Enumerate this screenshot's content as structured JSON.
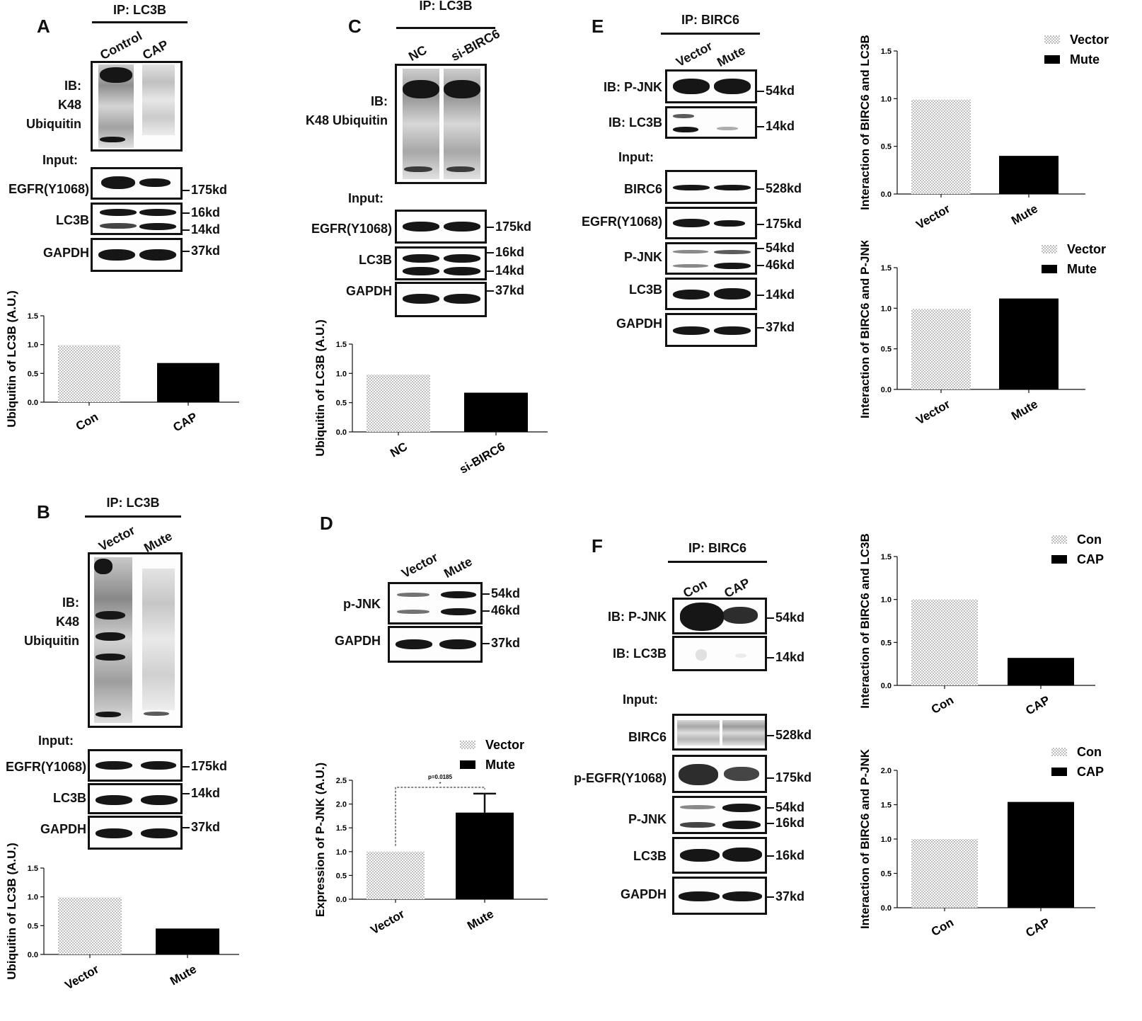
{
  "panels": {
    "A": {
      "letter": "A",
      "ip": "IP: LC3B",
      "lanes": [
        "Control",
        "CAP"
      ],
      "ib": "IB:\nK48\nUbiquitin",
      "input": "Input:",
      "rows": [
        {
          "label": "EGFR(Y1068)",
          "kd": [
            "175kd"
          ]
        },
        {
          "label": "LC3B",
          "kd": [
            "16kd",
            "14kd"
          ]
        },
        {
          "label": "GAPDH",
          "kd": [
            "37kd"
          ]
        }
      ]
    },
    "B": {
      "letter": "B",
      "ip": "IP: LC3B",
      "lanes": [
        "Vector",
        "Mute"
      ],
      "ib": "IB:\nK48\nUbiquitin",
      "input": "Input:",
      "rows": [
        {
          "label": "EGFR(Y1068)",
          "kd": [
            "175kd"
          ]
        },
        {
          "label": "LC3B",
          "kd": [
            "14kd"
          ]
        },
        {
          "label": "GAPDH",
          "kd": [
            "37kd"
          ]
        }
      ]
    },
    "C": {
      "letter": "C",
      "ip": "IP: LC3B",
      "lanes": [
        "NC",
        "si-BIRC6"
      ],
      "ib": "IB:\nK48 Ubiquitin",
      "input": "Input:",
      "rows": [
        {
          "label": "EGFR(Y1068)",
          "kd": [
            "175kd"
          ]
        },
        {
          "label": "LC3B",
          "kd": [
            "16kd",
            "14kd"
          ]
        },
        {
          "label": "GAPDH",
          "kd": [
            "37kd"
          ]
        }
      ]
    },
    "D": {
      "letter": "D",
      "lanes": [
        "Vector",
        "Mute"
      ],
      "rows": [
        {
          "label": "p-JNK",
          "kd": [
            "54kd",
            "46kd"
          ]
        },
        {
          "label": "GAPDH",
          "kd": [
            "37kd"
          ]
        }
      ]
    },
    "E": {
      "letter": "E",
      "ip": "IP: BIRC6",
      "lanes": [
        "Vector",
        "Mute"
      ],
      "ib_rows": [
        {
          "label": "IB: P-JNK",
          "kd": [
            "54kd"
          ]
        },
        {
          "label": "IB: LC3B",
          "kd": [
            "14kd"
          ]
        }
      ],
      "input": "Input:",
      "rows": [
        {
          "label": "BIRC6",
          "kd": [
            "528kd"
          ]
        },
        {
          "label": "EGFR(Y1068)",
          "kd": [
            "175kd"
          ]
        },
        {
          "label": "P-JNK",
          "kd": [
            "54kd",
            "46kd"
          ]
        },
        {
          "label": "LC3B",
          "kd": [
            "14kd"
          ]
        },
        {
          "label": "GAPDH",
          "kd": [
            "37kd"
          ]
        }
      ]
    },
    "F": {
      "letter": "F",
      "ip": "IP: BIRC6",
      "lanes": [
        "Con",
        "CAP"
      ],
      "ib_rows": [
        {
          "label": "IB: P-JNK",
          "kd": [
            "54kd"
          ]
        },
        {
          "label": "IB: LC3B",
          "kd": [
            "14kd"
          ]
        }
      ],
      "input": "Input:",
      "rows": [
        {
          "label": "BIRC6",
          "kd": [
            "528kd"
          ]
        },
        {
          "label": "p-EGFR(Y1068)",
          "kd": [
            "175kd"
          ]
        },
        {
          "label": "P-JNK",
          "kd": [
            "54kd",
            "16kd"
          ]
        },
        {
          "label": "LC3B",
          "kd": [
            "16kd"
          ]
        },
        {
          "label": "GAPDH",
          "kd": [
            "37kd"
          ]
        }
      ]
    }
  },
  "colors": {
    "bar_dark": "#000000",
    "bar_light": "#d9d9d9"
  },
  "chart_data": [
    {
      "id": "A",
      "type": "bar",
      "categories": [
        "Con",
        "CAP"
      ],
      "values": [
        0.99,
        0.68
      ],
      "ylabel": "Ubiquitin of LC3B (A.U.)",
      "ylim": [
        0,
        1.5
      ],
      "ticks": [
        "0.0",
        "0.5",
        "1.0",
        "1.5"
      ],
      "legend": []
    },
    {
      "id": "B",
      "type": "bar",
      "categories": [
        "Vector",
        "Mute"
      ],
      "values": [
        0.99,
        0.45
      ],
      "ylabel": "Ubiquitin of LC3B (A.U.)",
      "ylim": [
        0,
        1.5
      ],
      "ticks": [
        "0.0",
        "0.5",
        "1.0",
        "1.5"
      ],
      "legend": []
    },
    {
      "id": "C",
      "type": "bar",
      "categories": [
        "NC",
        "si-BIRC6"
      ],
      "values": [
        0.98,
        0.67
      ],
      "ylabel": "Ubiquitin of LC3B (A.U.)",
      "ylim": [
        0,
        1.5
      ],
      "ticks": [
        "0.0",
        "0.5",
        "1.0",
        "1.5"
      ],
      "legend": []
    },
    {
      "id": "D",
      "type": "bar",
      "categories": [
        "Vector",
        "Mute"
      ],
      "values": [
        1.0,
        1.82
      ],
      "errors": [
        0,
        0.4
      ],
      "ylabel": "Expression of P-JNK (A.U.)",
      "ylim": [
        0,
        2.5
      ],
      "ticks": [
        "0.0",
        "0.5",
        "1.0",
        "1.5",
        "2.0",
        "2.5"
      ],
      "legend": [
        "Vector",
        "Mute"
      ],
      "annotation": "p=0.0185",
      "star": "*"
    },
    {
      "id": "E1",
      "type": "bar",
      "categories": [
        "Vector",
        "Mute"
      ],
      "values": [
        0.99,
        0.4
      ],
      "ylabel": "Interaction of BIRC6 and LC3B",
      "ylim": [
        0,
        1.5
      ],
      "ticks": [
        "0.0",
        "0.5",
        "1.0",
        "1.5"
      ],
      "legend": [
        "Vector",
        "Mute"
      ]
    },
    {
      "id": "E2",
      "type": "bar",
      "categories": [
        "Vector",
        "Mute"
      ],
      "values": [
        0.99,
        1.12
      ],
      "ylabel": "Interaction of BIRC6 and P-JNK",
      "ylim": [
        0,
        1.5
      ],
      "ticks": [
        "0.0",
        "0.5",
        "1.0",
        "1.5"
      ],
      "legend": [
        "Vector",
        "Mute"
      ]
    },
    {
      "id": "F1",
      "type": "bar",
      "categories": [
        "Con",
        "CAP"
      ],
      "values": [
        1.0,
        0.32
      ],
      "ylabel": "Interaction of BIRC6 and LC3B",
      "ylim": [
        0,
        1.5
      ],
      "ticks": [
        "0.0",
        "0.5",
        "1.0",
        "1.5"
      ],
      "legend": [
        "Con",
        "CAP"
      ]
    },
    {
      "id": "F2",
      "type": "bar",
      "categories": [
        "Con",
        "CAP"
      ],
      "values": [
        1.0,
        1.54
      ],
      "ylabel": "Interaction of BIRC6 and P-JNK",
      "ylim": [
        0,
        2.0
      ],
      "ticks": [
        "0.0",
        "0.5",
        "1.0",
        "1.5",
        "2.0"
      ],
      "legend": [
        "Con",
        "CAP"
      ]
    }
  ]
}
